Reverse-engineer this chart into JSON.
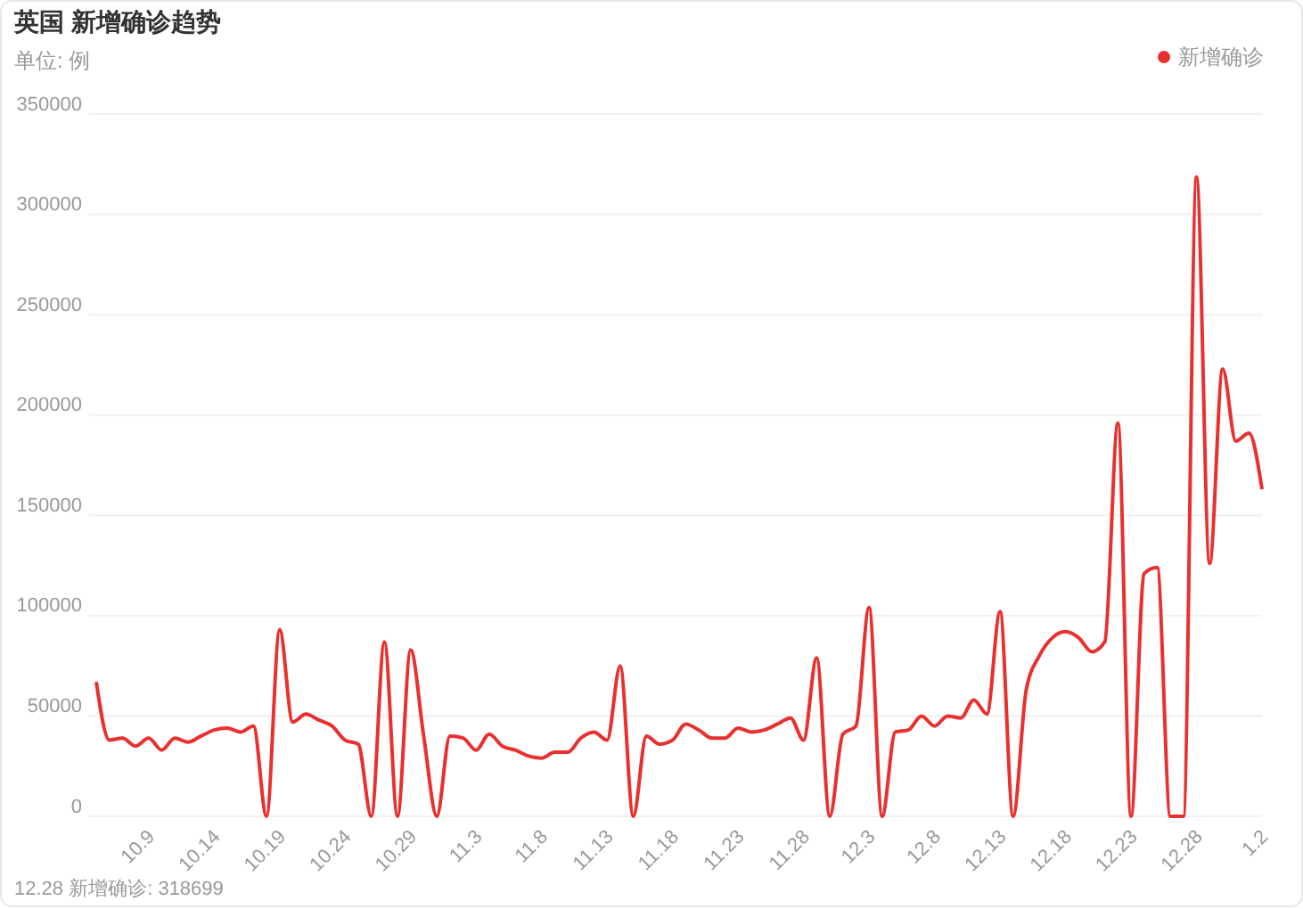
{
  "chart_data": {
    "type": "line",
    "title": "英国 新增确诊趋势",
    "subtitle": "单位: 例",
    "categories": [
      null,
      null,
      null,
      null,
      "10.9",
      null,
      null,
      null,
      null,
      "10.14",
      null,
      null,
      null,
      null,
      "10.19",
      null,
      null,
      null,
      null,
      "10.24",
      null,
      null,
      null,
      null,
      "10.29",
      null,
      null,
      null,
      null,
      "11.3",
      null,
      null,
      null,
      null,
      "11.8",
      null,
      null,
      null,
      null,
      "11.13",
      null,
      null,
      null,
      null,
      "11.18",
      null,
      null,
      null,
      null,
      "11.23",
      null,
      null,
      null,
      null,
      "11.28",
      null,
      null,
      null,
      null,
      "12.3",
      null,
      null,
      null,
      null,
      "12.8",
      null,
      null,
      null,
      null,
      "12.13",
      null,
      null,
      null,
      null,
      "12.18",
      null,
      null,
      null,
      null,
      "12.23",
      null,
      null,
      null,
      null,
      "12.28",
      null,
      null,
      null,
      null,
      "1.2"
    ],
    "series": [
      {
        "name": "新增确诊",
        "color": "#e8302f",
        "values": [
          67000,
          38000,
          39000,
          35000,
          39000,
          33000,
          39000,
          37000,
          40000,
          43000,
          44000,
          42000,
          45000,
          0,
          93000,
          47000,
          51000,
          48000,
          45000,
          38000,
          36000,
          0,
          87000,
          0,
          83000,
          40000,
          0,
          40000,
          39000,
          33000,
          41000,
          35000,
          33000,
          30000,
          29000,
          32000,
          32000,
          39000,
          42000,
          38000,
          75000,
          0,
          40000,
          36000,
          38000,
          46000,
          43000,
          39000,
          39000,
          44000,
          42000,
          43000,
          46000,
          49000,
          38000,
          79000,
          0,
          41000,
          45000,
          104000,
          0,
          42000,
          43000,
          50000,
          45000,
          50000,
          49000,
          58000,
          51000,
          102000,
          0,
          63000,
          80000,
          89000,
          92000,
          89000,
          82000,
          87000,
          196000,
          0,
          121000,
          124000,
          0,
          0,
          318699,
          126000,
          223000,
          187000,
          191000,
          163000
        ]
      }
    ],
    "ylim": [
      0,
      350000
    ],
    "yticks": [
      0,
      50000,
      100000,
      150000,
      200000,
      250000,
      300000,
      350000
    ],
    "grid": "y",
    "legend": "top right",
    "marker": "none",
    "line_style": "solid",
    "annotations": [
      "12.28\n新增确诊: 318699"
    ]
  }
}
